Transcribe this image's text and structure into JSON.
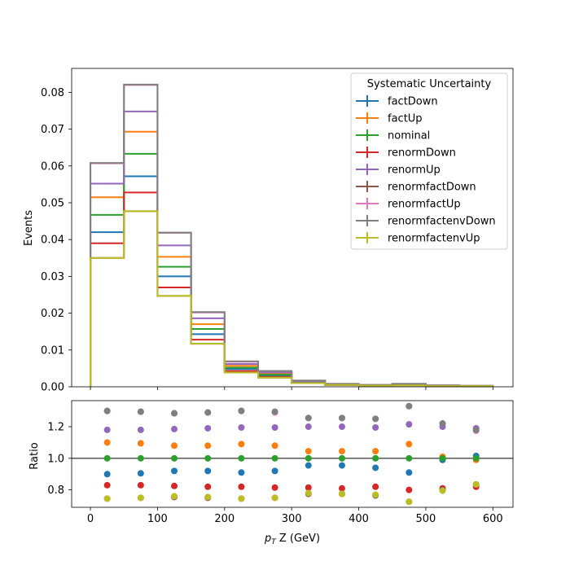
{
  "chart_data": [
    {
      "type": "histogram-step",
      "ylabel": "Events",
      "xlim": [
        -28,
        630
      ],
      "ylim": [
        0,
        0.0865
      ],
      "yticks": [
        "0.00",
        "0.01",
        "0.02",
        "0.03",
        "0.04",
        "0.05",
        "0.06",
        "0.07",
        "0.08"
      ],
      "bin_edges": [
        0,
        50,
        100,
        150,
        200,
        250,
        300,
        350,
        400,
        450,
        500,
        550,
        600
      ],
      "legend": {
        "title": "Systematic Uncertainty",
        "placement": "top-right"
      },
      "series": [
        {
          "name": "factDown",
          "color": "#1f77b4",
          "values": [
            0.042,
            0.0572,
            0.03,
            0.0143,
            0.0048,
            0.003,
            0.0012,
            0.0005,
            0.0003,
            0.0005,
            0.0003,
            0.0002
          ]
        },
        {
          "name": "factUp",
          "color": "#ff7f0e",
          "values": [
            0.0515,
            0.0693,
            0.0353,
            0.017,
            0.0057,
            0.0035,
            0.0014,
            0.0006,
            0.0004,
            0.0006,
            0.0003,
            0.0002
          ]
        },
        {
          "name": "nominal",
          "color": "#2ca02c",
          "values": [
            0.0467,
            0.0633,
            0.0326,
            0.0157,
            0.0052,
            0.0033,
            0.0013,
            0.0006,
            0.0004,
            0.0006,
            0.0003,
            0.0002
          ]
        },
        {
          "name": "renormDown",
          "color": "#d62728",
          "values": [
            0.039,
            0.0528,
            0.027,
            0.0128,
            0.0043,
            0.0027,
            0.001,
            0.0005,
            0.0003,
            0.0005,
            0.0002,
            0.0002
          ]
        },
        {
          "name": "renormUp",
          "color": "#9467bd",
          "values": [
            0.0552,
            0.0748,
            0.0384,
            0.0186,
            0.0062,
            0.0039,
            0.0015,
            0.0007,
            0.0005,
            0.0007,
            0.0004,
            0.0002
          ]
        },
        {
          "name": "renormfactDown",
          "color": "#8c564b",
          "values": [
            0.035,
            0.0477,
            0.0247,
            0.0117,
            0.0039,
            0.0025,
            0.001,
            0.0005,
            0.0003,
            0.0004,
            0.0002,
            0.0002
          ]
        },
        {
          "name": "renormfactUp",
          "color": "#e377c2",
          "values": [
            0.0607,
            0.082,
            0.0418,
            0.0202,
            0.0068,
            0.0043,
            0.0017,
            0.0008,
            0.0005,
            0.0008,
            0.0004,
            0.0002
          ]
        },
        {
          "name": "renormfactenvDown",
          "color": "#7f7f7f",
          "values": [
            0.0608,
            0.0821,
            0.0419,
            0.0203,
            0.0069,
            0.0043,
            0.0017,
            0.0008,
            0.0005,
            0.0008,
            0.0004,
            0.0003
          ]
        },
        {
          "name": "renormfactenvUp",
          "color": "#bcbd22",
          "values": [
            0.035,
            0.0477,
            0.0247,
            0.0117,
            0.0039,
            0.0025,
            0.001,
            0.0005,
            0.0003,
            0.0004,
            0.0002,
            0.0002
          ]
        }
      ]
    },
    {
      "type": "scatter",
      "ylabel": "Ratio",
      "xlabel_prefix": "p",
      "xlabel_sub": "T",
      "xlabel_suffix": " Z (GeV)",
      "xlim": [
        -28,
        630
      ],
      "ylim": [
        0.69,
        1.365
      ],
      "xticks": [
        0,
        100,
        200,
        300,
        400,
        500,
        600
      ],
      "yticks": [
        "0.8",
        "1.0",
        "1.2"
      ],
      "reference_line": 1.0,
      "x": [
        25,
        75,
        125,
        175,
        225,
        275,
        325,
        375,
        425,
        475,
        525,
        575
      ],
      "series": [
        {
          "name": "factDown",
          "color": "#1f77b4",
          "values": [
            0.9,
            0.905,
            0.92,
            0.92,
            0.91,
            0.92,
            0.955,
            0.955,
            0.94,
            0.91,
            0.99,
            1.015
          ]
        },
        {
          "name": "factUp",
          "color": "#ff7f0e",
          "values": [
            1.1,
            1.095,
            1.08,
            1.08,
            1.09,
            1.08,
            1.045,
            1.045,
            1.045,
            1.09,
            1.01,
            0.99
          ]
        },
        {
          "name": "nominal",
          "color": "#2ca02c",
          "values": [
            1.0,
            1.0,
            1.0,
            1.0,
            1.0,
            1.0,
            1.0,
            1.0,
            1.0,
            1.0,
            1.0,
            1.0
          ]
        },
        {
          "name": "renormDown",
          "color": "#d62728",
          "values": [
            0.83,
            0.83,
            0.825,
            0.82,
            0.82,
            0.815,
            0.815,
            0.81,
            0.82,
            0.8,
            0.81,
            0.82
          ]
        },
        {
          "name": "renormUp",
          "color": "#9467bd",
          "values": [
            1.18,
            1.18,
            1.185,
            1.19,
            1.195,
            1.195,
            1.2,
            1.2,
            1.195,
            1.215,
            1.2,
            1.19
          ]
        },
        {
          "name": "renormfactDown",
          "color": "#8c564b",
          "values": [
            0.745,
            0.75,
            0.755,
            0.75,
            0.745,
            0.75,
            0.775,
            0.775,
            0.765,
            0.725,
            0.8,
            0.835
          ]
        },
        {
          "name": "renormfactUp",
          "color": "#e377c2",
          "values": [
            1.3,
            1.295,
            1.285,
            1.29,
            1.3,
            1.29,
            1.255,
            1.255,
            1.25,
            1.33,
            1.22,
            1.175
          ]
        },
        {
          "name": "renormfactenvDown",
          "color": "#7f7f7f",
          "values": [
            1.3,
            1.295,
            1.285,
            1.29,
            1.3,
            1.295,
            1.255,
            1.255,
            1.25,
            1.33,
            1.22,
            1.18
          ]
        },
        {
          "name": "renormfactenvUp",
          "color": "#bcbd22",
          "values": [
            0.745,
            0.75,
            0.76,
            0.755,
            0.745,
            0.75,
            0.78,
            0.775,
            0.77,
            0.725,
            0.795,
            0.835
          ]
        }
      ]
    }
  ]
}
